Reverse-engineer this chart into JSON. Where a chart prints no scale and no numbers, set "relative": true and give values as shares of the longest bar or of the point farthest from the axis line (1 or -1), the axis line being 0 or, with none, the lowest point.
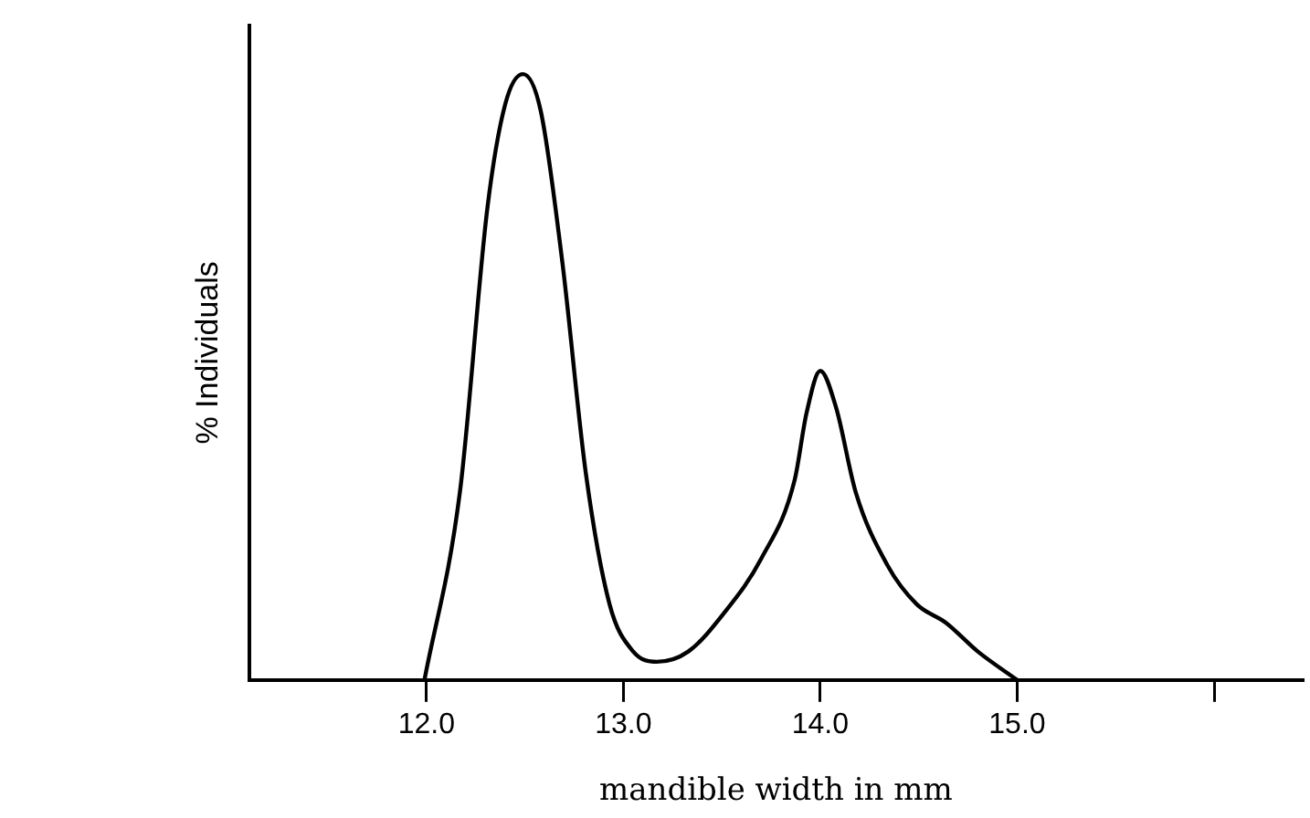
{
  "chart_data": {
    "type": "line",
    "xlabel": "mandible width in mm",
    "ylabel": "% Individuals",
    "relative": true,
    "grid": false,
    "legend": false,
    "marker": "none",
    "line_style": "solid",
    "xlim": [
      11.1,
      16.45
    ],
    "xticks": [
      {
        "value": 12,
        "label": "12.0"
      },
      {
        "value": 13,
        "label": "13.0"
      },
      {
        "value": 14,
        "label": "14.0"
      },
      {
        "value": 15,
        "label": "15.0"
      },
      {
        "value": 16,
        "label": null
      }
    ],
    "series": [
      {
        "color": "#000000",
        "x": [
          11.99,
          12.17,
          12.31,
          12.4,
          12.49,
          12.58,
          12.69,
          12.81,
          12.93,
          13.05,
          13.17,
          13.33,
          13.51,
          13.7,
          13.87,
          13.93,
          14.0,
          14.08,
          14.18,
          14.34,
          14.49,
          14.64,
          14.8,
          15.0
        ],
        "values": [
          0,
          0.31,
          0.78,
          0.95,
          1,
          0.94,
          0.69,
          0.34,
          0.125,
          0.047,
          0.03,
          0.047,
          0.11,
          0.2,
          0.33,
          0.44,
          0.51,
          0.45,
          0.31,
          0.19,
          0.125,
          0.094,
          0.047,
          0
        ]
      }
    ]
  }
}
